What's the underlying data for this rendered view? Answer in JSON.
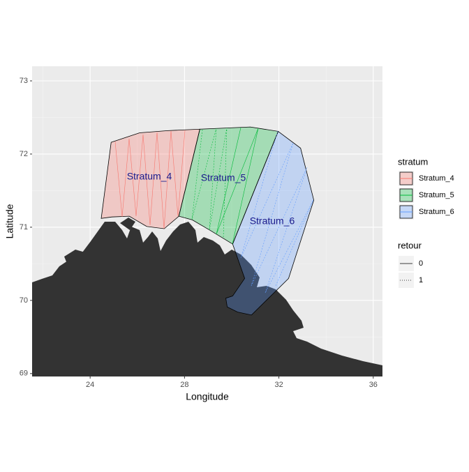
{
  "chart_data": {
    "type": "map",
    "x_label": "Longitude",
    "y_label": "Latitude",
    "xlim": [
      21.54,
      36.39
    ],
    "ylim": [
      68.96,
      73.2
    ],
    "xticks": [
      24,
      28,
      32,
      36
    ],
    "yticks": [
      69,
      70,
      71,
      72,
      73
    ],
    "grid": true,
    "fill_alpha": 0.3,
    "series": [
      {
        "name": "Stratum_4",
        "color": "#F8766D",
        "x": [
          24.89,
          26.1,
          27.29,
          28.65,
          27.76,
          27.14,
          26.4,
          25.66,
          24.92,
          24.47
        ],
        "y": [
          72.16,
          72.29,
          72.32,
          72.34,
          71.15,
          70.98,
          71.01,
          71.15,
          71.14,
          71.12
        ]
      },
      {
        "name": "Stratum_5",
        "color": "#00BA38",
        "x": [
          28.65,
          30.79,
          31.97,
          30.04,
          29.07,
          28.33,
          27.76
        ],
        "y": [
          72.34,
          72.37,
          72.31,
          70.77,
          70.96,
          71.1,
          71.15
        ]
      },
      {
        "name": "Stratum_6",
        "color": "#619CFF",
        "x": [
          31.97,
          32.92,
          33.48,
          32.41,
          30.84,
          30.25,
          29.81,
          29.75,
          30.04,
          30.55,
          30.04
        ],
        "y": [
          72.31,
          72.08,
          71.37,
          70.3,
          69.8,
          69.84,
          69.91,
          70.03,
          70.06,
          70.3,
          70.77
        ]
      }
    ],
    "annotations": [
      "Stratum_4",
      "Stratum_5",
      "Stratum_6"
    ],
    "annotation_color": "#1a1a8c",
    "legend": {
      "title": "stratum",
      "position": "right"
    },
    "line_legend": {
      "title": "retour",
      "items": [
        {
          "label": "0",
          "dash": "solid"
        },
        {
          "label": "1",
          "dash": "dotted"
        }
      ]
    }
  }
}
